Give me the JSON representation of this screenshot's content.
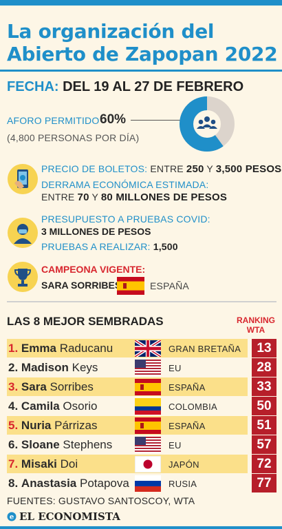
{
  "title": "La organización del Abierto de Zapopan 2022",
  "fecha": {
    "label": "FECHA:",
    "value": "DEL 19 AL 27 DE FEBRERO"
  },
  "aforo": {
    "label": "AFORO PERMITIDO",
    "percent": "60%",
    "percent_value": 60,
    "detail": "(4,800 PERSONAS POR DÍA)"
  },
  "boletos": {
    "label": "PRECIO DE BOLETOS:",
    "entre": "ENTRE",
    "min": "250",
    "y": "Y",
    "max": "3,500 PESOS"
  },
  "derrama": {
    "label": "DERRAMA ECONÓMICA ESTIMADA:",
    "entre": "ENTRE",
    "min": "70",
    "y": "Y",
    "max": "80 MILLONES DE PESOS"
  },
  "covid": {
    "label": "PRESUPUESTO A PRUEBAS COVID:",
    "value": "3 MILLONES DE PESOS",
    "pruebas_label": "PRUEBAS A REALIZAR:",
    "pruebas_value": "1,500"
  },
  "campeona": {
    "label": "CAMPEONA VIGENTE:",
    "name": "SARA SORRIBES",
    "country": "ESPAÑA"
  },
  "seeds": {
    "title": "LAS 8 MEJOR SEMBRADAS",
    "ranking_label_1": "RANKING",
    "ranking_label_2": "WTA",
    "players": [
      {
        "num": "1.",
        "first": "Emma",
        "last": "Raducanu",
        "country": "GRAN BRETAÑA",
        "flag": "uk",
        "rank": "13"
      },
      {
        "num": "2.",
        "first": "Madison",
        "last": "Keys",
        "country": "EU",
        "flag": "us",
        "rank": "28"
      },
      {
        "num": "3.",
        "first": "Sara",
        "last": "Sorribes",
        "country": "ESPAÑA",
        "flag": "es",
        "rank": "33"
      },
      {
        "num": "4.",
        "first": "Camila",
        "last": "Osorio",
        "country": "COLOMBIA",
        "flag": "co",
        "rank": "50"
      },
      {
        "num": "5.",
        "first": "Nuria",
        "last": "Párrizas",
        "country": "ESPAÑA",
        "flag": "es",
        "rank": "51"
      },
      {
        "num": "6.",
        "first": "Sloane",
        "last": "Stephens",
        "country": "EU",
        "flag": "us",
        "rank": "57"
      },
      {
        "num": "7.",
        "first": "Misaki",
        "last": "Doi",
        "country": "JAPÓN",
        "flag": "jp",
        "rank": "72"
      },
      {
        "num": "8.",
        "first": "Anastasia",
        "last": "Potapova",
        "country": "RUSIA",
        "flag": "ru",
        "rank": "77"
      }
    ]
  },
  "fuentes": "FUENTES: GUSTAVO SANTOSCOY, WTA",
  "brand": "EL ECONOMISTA",
  "colors": {
    "accent": "#1f8fc9",
    "red": "#d8262e",
    "rank_bg": "#b71f2a",
    "highlight": "#fbe08a",
    "icon_bg": "#f7d352",
    "background": "#fdf6e6"
  }
}
